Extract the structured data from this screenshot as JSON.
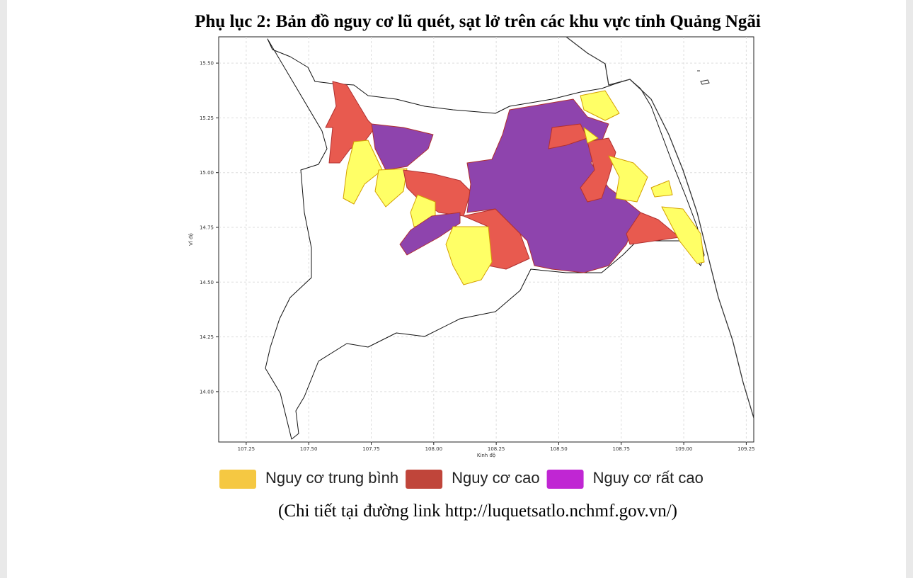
{
  "title": "Phụ lục 2: Bản đồ nguy cơ lũ quét, sạt lở trên các khu vực tỉnh Quảng Ngãi",
  "map": {
    "xlabel": "Kinh độ",
    "ylabel": "Vĩ độ",
    "xlim": [
      107.14,
      109.28
    ],
    "ylim": [
      13.77,
      15.62
    ],
    "xticks": [
      107.25,
      {
        "value": 107.5,
        "label": "107.50"
      },
      107.75,
      {
        "value": 108,
        "label": "108.00"
      },
      108.25,
      {
        "value": 108.5,
        "label": "108.50"
      },
      108.75,
      {
        "value": 109,
        "label": "109.00"
      },
      109.25
    ],
    "yticks": [
      {
        "value": 15.5,
        "label": "15.50"
      },
      15.25,
      {
        "value": 15,
        "label": "15.00"
      },
      14.75,
      {
        "value": 14.5,
        "label": "14.50"
      },
      14.25,
      {
        "value": 14,
        "label": "14.00"
      }
    ],
    "grid": true
  },
  "legend": [
    {
      "label": "Nguy cơ trung bình",
      "color": "#f5c842"
    },
    {
      "label": "Nguy cơ cao",
      "color": "#c0453a"
    },
    {
      "label": "Nguy cơ rất cao",
      "color": "#c026d3"
    }
  ],
  "caption": "(Chi tiết tại đường link http://luquetsatlo.nchmf.gov.vn/)"
}
